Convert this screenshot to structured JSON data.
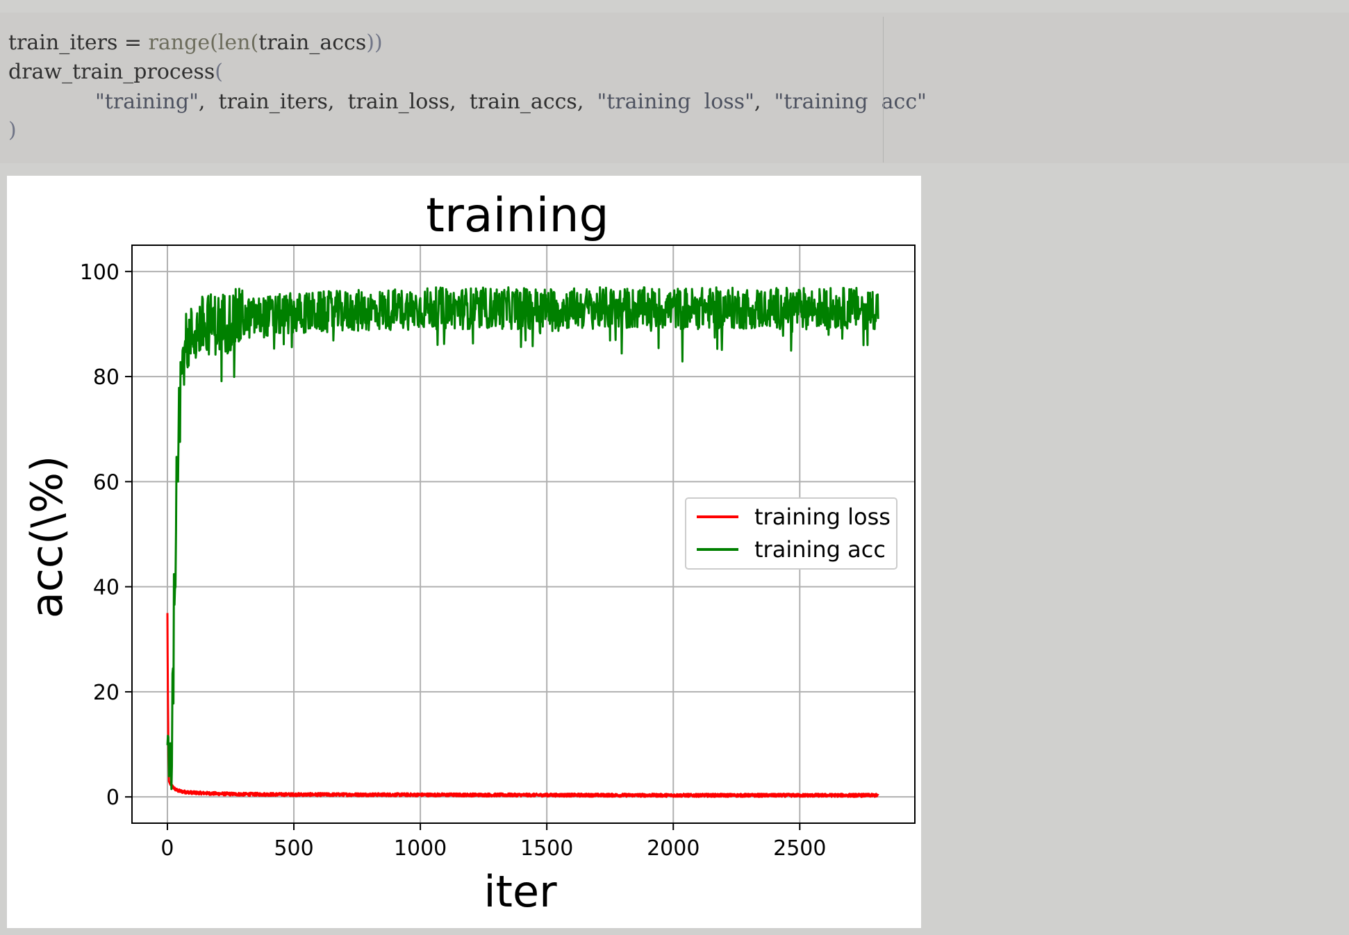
{
  "code": {
    "line1": {
      "a": "train_iters",
      "b": " = ",
      "c": "range(",
      "d": "len(",
      "e": "train_accs",
      "f": "))"
    },
    "line2": {
      "a": "draw_train_process",
      "b": "("
    },
    "line3": {
      "a": "\"training\"",
      "b": ",  train_iters,  train_loss,  train_accs,  ",
      "c": "\"training  loss\"",
      "d": ",  ",
      "e": "\"training  acc\""
    },
    "line4": {
      "a": ")"
    }
  },
  "chart_data": {
    "type": "line",
    "title": "training",
    "xlabel": "iter",
    "ylabel": "acc(\\%)",
    "xlim": [
      -140,
      2955
    ],
    "ylim": [
      -5,
      105
    ],
    "xticks": [
      0,
      500,
      1000,
      1500,
      2000,
      2500
    ],
    "yticks": [
      0,
      20,
      40,
      60,
      80,
      100
    ],
    "xtick_labels": [
      "0",
      "500",
      "1000",
      "1500",
      "2000",
      "2500"
    ],
    "ytick_labels": [
      "0",
      "20",
      "40",
      "60",
      "80",
      "100"
    ],
    "grid": true,
    "legend": "center-right",
    "x_max": 2810,
    "series": [
      {
        "name": "training loss",
        "color": "#ff0000",
        "points": [
          [
            0,
            35
          ],
          [
            2,
            20
          ],
          [
            4,
            8
          ],
          [
            6,
            3
          ],
          [
            10,
            2.5
          ],
          [
            20,
            2
          ],
          [
            30,
            1.5
          ],
          [
            40,
            1.2
          ],
          [
            60,
            1.0
          ],
          [
            80,
            0.9
          ],
          [
            100,
            0.8
          ],
          [
            150,
            0.7
          ],
          [
            200,
            0.6
          ],
          [
            300,
            0.5
          ],
          [
            500,
            0.45
          ],
          [
            1000,
            0.4
          ],
          [
            1500,
            0.35
          ],
          [
            2000,
            0.3
          ],
          [
            2500,
            0.3
          ],
          [
            2810,
            0.3
          ]
        ]
      },
      {
        "name": "training acc",
        "color": "#008000",
        "points": [
          [
            0,
            8
          ],
          [
            8,
            12
          ],
          [
            15,
            5
          ],
          [
            25,
            30
          ],
          [
            35,
            58
          ],
          [
            45,
            75
          ],
          [
            55,
            80
          ],
          [
            70,
            86
          ],
          [
            100,
            88
          ],
          [
            150,
            90
          ],
          [
            200,
            90
          ],
          [
            300,
            91
          ],
          [
            500,
            92
          ],
          [
            1000,
            93
          ],
          [
            1500,
            93
          ],
          [
            2000,
            93
          ],
          [
            2500,
            93
          ],
          [
            2810,
            93
          ]
        ]
      }
    ]
  }
}
